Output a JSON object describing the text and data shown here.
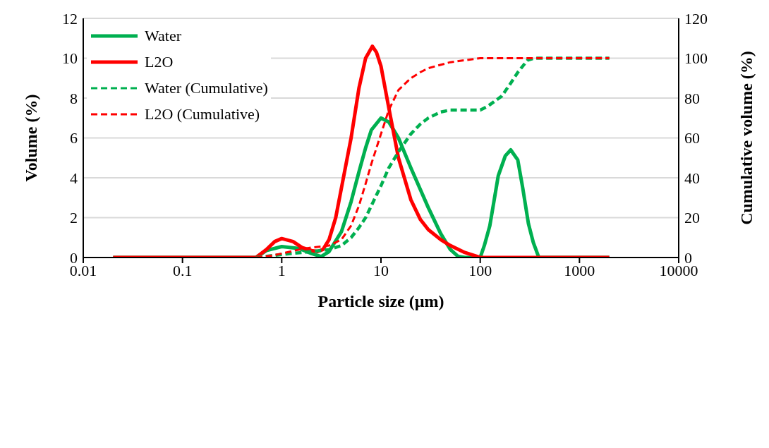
{
  "chart_data": {
    "type": "line",
    "xlabel": "Particle size (µm)",
    "ylabel": "Volume (%)",
    "y2label": "Cumulative volume (%)",
    "log": "x",
    "xlim": [
      0.01,
      10000
    ],
    "xticks": [
      0.01,
      0.1,
      1,
      10,
      100,
      1000,
      10000
    ],
    "ylim": [
      0,
      12
    ],
    "yticks": [
      0,
      2,
      4,
      6,
      8,
      10,
      12
    ],
    "y2lim": [
      0,
      120
    ],
    "y2ticks": [
      0,
      20,
      40,
      60,
      80,
      100,
      120
    ],
    "grid": "y",
    "legend": "top left",
    "marker": "none",
    "series": [
      {
        "name": "Water",
        "color": "#00b050",
        "line_style": "solid",
        "x": [
          0.02,
          0.55,
          0.7,
          1,
          1.5,
          2,
          2.5,
          3,
          4,
          5,
          6,
          7,
          8,
          10,
          12,
          15,
          20,
          25,
          30,
          40,
          50,
          60,
          70,
          100,
          110,
          125,
          152,
          179,
          203,
          239,
          268,
          306,
          343,
          390,
          2000
        ],
        "values": [
          0,
          0,
          0.35,
          0.55,
          0.45,
          0.2,
          0.05,
          0.3,
          1.3,
          2.8,
          4.3,
          5.5,
          6.4,
          7.0,
          6.8,
          6.0,
          4.5,
          3.4,
          2.5,
          1.2,
          0.4,
          0.05,
          0,
          0,
          0.6,
          1.6,
          4.1,
          5.1,
          5.4,
          4.9,
          3.5,
          1.7,
          0.75,
          0,
          0
        ]
      },
      {
        "name": "L2O",
        "color": "#ff0000",
        "line_style": "solid",
        "x": [
          0.02,
          0.55,
          0.7,
          0.85,
          1,
          1.3,
          1.6,
          2,
          2.3,
          2.6,
          3,
          3.5,
          4,
          5,
          6,
          7,
          8.2,
          9,
          10,
          12,
          15,
          20,
          25,
          30,
          40,
          50,
          70,
          100,
          2000
        ],
        "values": [
          0,
          0,
          0.4,
          0.8,
          0.95,
          0.8,
          0.5,
          0.35,
          0.3,
          0.4,
          0.9,
          2.0,
          3.5,
          6.0,
          8.5,
          10.0,
          10.6,
          10.3,
          9.6,
          7.5,
          5.0,
          2.9,
          1.9,
          1.4,
          0.9,
          0.6,
          0.25,
          0,
          0
        ]
      },
      {
        "name": "Water (Cumulative)",
        "color": "#00b050",
        "line_style": "dashed",
        "axis": "y2",
        "x": [
          0.55,
          1,
          2,
          3,
          4,
          5,
          6,
          7,
          8,
          10,
          12,
          15,
          20,
          25,
          30,
          40,
          50,
          100,
          120,
          165,
          200,
          240,
          300,
          350,
          2000
        ],
        "values": [
          0,
          1.5,
          3,
          4,
          6,
          10,
          15,
          20,
          26,
          36,
          45,
          53,
          62,
          67,
          70,
          73,
          74,
          74,
          76,
          81,
          87,
          93,
          99,
          100,
          100
        ]
      },
      {
        "name": "L2O (Cumulative)",
        "color": "#ff0000",
        "line_style": "dashed",
        "axis": "y2",
        "x": [
          0.55,
          0.8,
          1,
          1.5,
          2,
          3,
          4,
          5,
          6,
          7,
          8,
          10,
          12,
          15,
          20,
          25,
          30,
          50,
          100,
          2000
        ],
        "values": [
          0,
          1,
          2,
          4,
          5,
          6,
          9,
          16,
          26,
          37,
          47,
          62,
          74,
          84,
          90,
          93,
          95,
          98,
          100,
          100
        ]
      }
    ]
  }
}
